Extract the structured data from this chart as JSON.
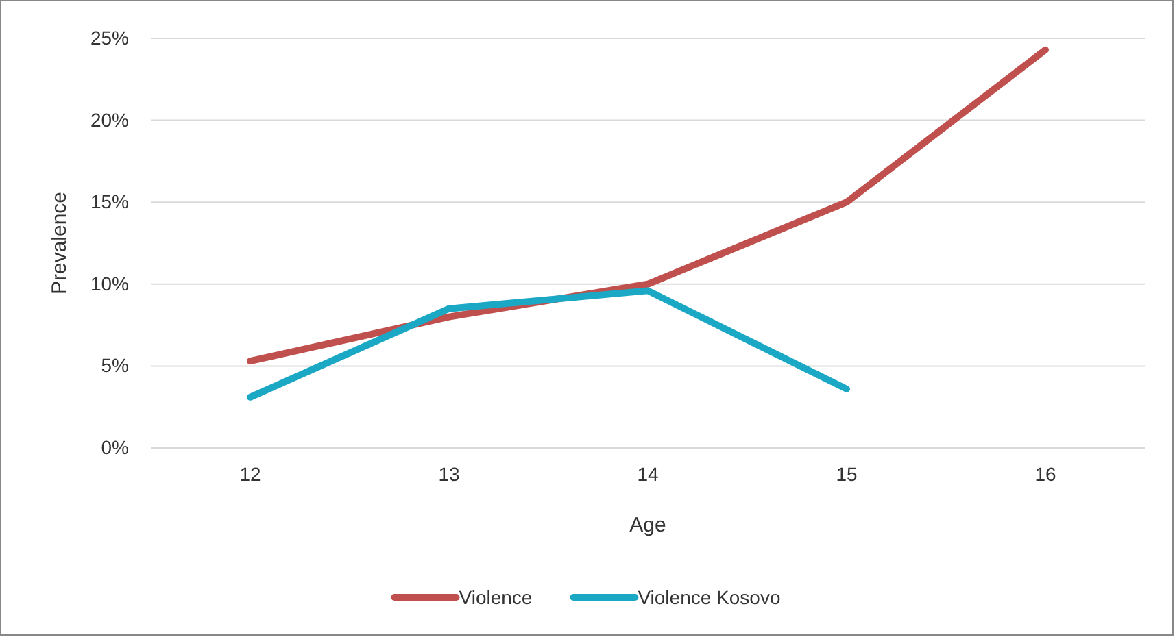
{
  "chart_data": {
    "type": "line",
    "xlabel": "Age",
    "ylabel": "Prevalence",
    "categories": [
      "12",
      "13",
      "14",
      "15",
      "16"
    ],
    "series": [
      {
        "name": "Violence",
        "color": "#c0504d",
        "values": [
          5.3,
          8.0,
          10.0,
          15.0,
          24.3
        ]
      },
      {
        "name": "Violence Kosovo",
        "color": "#1ba8c4",
        "values": [
          3.1,
          8.5,
          9.6,
          3.6,
          null
        ]
      }
    ],
    "ylim": [
      0,
      25
    ],
    "yticks": [
      {
        "value": 0,
        "label": "0%"
      },
      {
        "value": 5,
        "label": "5%"
      },
      {
        "value": 10,
        "label": "10%"
      },
      {
        "value": 15,
        "label": "15%"
      },
      {
        "value": 20,
        "label": "20%"
      },
      {
        "value": 25,
        "label": "25%"
      }
    ],
    "grid": "y",
    "legend": "bottom",
    "marker": "none",
    "line_style": "solid"
  }
}
